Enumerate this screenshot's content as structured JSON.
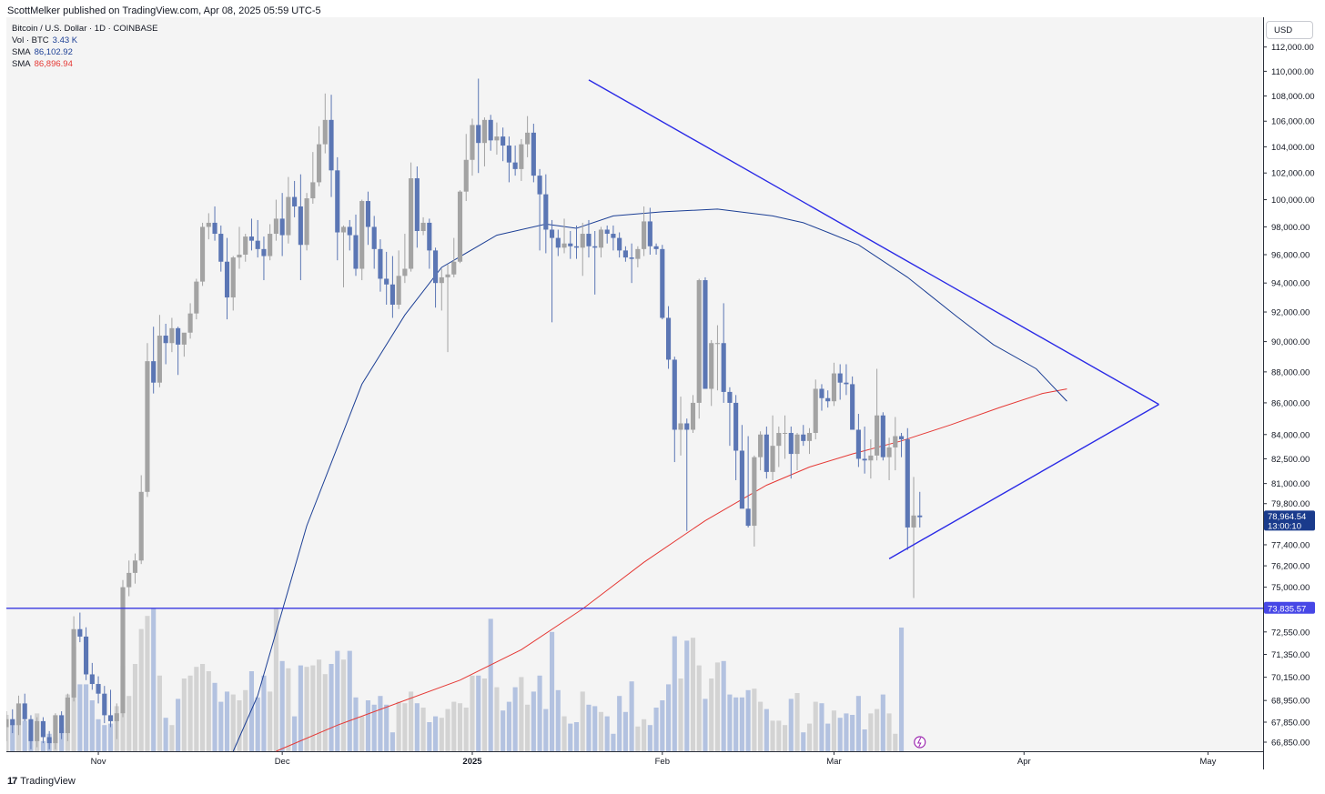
{
  "header": {
    "published_line": "ScottMelker published on TradingView.com, Apr 08, 2025 05:59 UTC-5"
  },
  "legend": {
    "symbol": "Bitcoin / U.S. Dollar · 1D · COINBASE",
    "vol_label": "Vol · BTC",
    "vol_value": "3.43 K",
    "sma1_label": "SMA",
    "sma1_value": "86,102.92",
    "sma2_label": "SMA",
    "sma2_value": "86,896.94"
  },
  "currency_button": "USD",
  "footer": {
    "brand": "TradingView",
    "logo_glyph": "17"
  },
  "colors": {
    "up": "#a3a3a3",
    "down": "#5b76b4",
    "vol_up": "#d3d3d3",
    "vol_down": "#b3c2e0",
    "sma_fast": "#1c3f95",
    "sma_slow": "#e53935",
    "trendline": "#2a2ae6",
    "support": "#3636e0",
    "price_label_bg": "#1a3b8c",
    "support_label_bg": "#4747e6"
  },
  "chart_data": {
    "type": "candlestick",
    "title": "Bitcoin / U.S. Dollar · 1D · COINBASE",
    "x_ticks": [
      "Nov",
      "Dec",
      "2025",
      "Feb",
      "Mar",
      "Apr",
      "May"
    ],
    "y_ticks": [
      "112,000.00",
      "110,000.00",
      "108,000.00",
      "106,000.00",
      "104,000.00",
      "102,000.00",
      "100,000.00",
      "98,000.00",
      "96,000.00",
      "94,000.00",
      "92,000.00",
      "90,000.00",
      "88,000.00",
      "86,000.00",
      "84,000.00",
      "82,500.00",
      "81,000.00",
      "79,800.00",
      "77,400.00",
      "76,200.00",
      "75,000.00",
      "72,550.00",
      "71,350.00",
      "70,150.00",
      "68,950.00",
      "67,850.00",
      "66,850.00"
    ],
    "y_tick_values": [
      112000,
      110000,
      108000,
      106000,
      104000,
      102000,
      100000,
      98000,
      96000,
      94000,
      92000,
      90000,
      88000,
      86000,
      84000,
      82500,
      81000,
      79800,
      77400,
      76200,
      75000,
      72550,
      71350,
      70150,
      68950,
      67850,
      66850
    ],
    "y_scale": "log",
    "ylim": [
      66400,
      114500
    ],
    "start_date": "2024-10-17",
    "end_date": "2025-04-08",
    "x_range_dates": [
      "2024-10-17",
      "2025-05-10"
    ],
    "candles_ohlc": [
      [
        67600,
        68400,
        66900,
        68000
      ],
      [
        68000,
        68500,
        67300,
        67700
      ],
      [
        67700,
        69200,
        67200,
        68800
      ],
      [
        68800,
        69300,
        67900,
        68000
      ],
      [
        68000,
        68200,
        66500,
        66900
      ],
      [
        66900,
        68100,
        66600,
        67900
      ],
      [
        67900,
        68100,
        66800,
        67100
      ],
      [
        67100,
        67400,
        66500,
        66800
      ],
      [
        66800,
        68300,
        66500,
        68200
      ],
      [
        68200,
        68400,
        67000,
        67300
      ],
      [
        67300,
        69300,
        66900,
        69100
      ],
      [
        69100,
        73400,
        68900,
        72700
      ],
      [
        72700,
        73600,
        72000,
        72300
      ],
      [
        72300,
        72800,
        70000,
        70300
      ],
      [
        70300,
        70900,
        69500,
        69800
      ],
      [
        69800,
        70200,
        68800,
        69300
      ],
      [
        69300,
        69700,
        67800,
        68200
      ],
      [
        68200,
        69500,
        67600,
        67900
      ],
      [
        67900,
        68800,
        67000,
        68300
      ],
      [
        68300,
        75400,
        68100,
        75000
      ],
      [
        75000,
        76500,
        74500,
        75800
      ],
      [
        75800,
        76900,
        75200,
        76500
      ],
      [
        76500,
        81500,
        76300,
        80500
      ],
      [
        80500,
        89900,
        80200,
        88700
      ],
      [
        88700,
        91000,
        86600,
        87300
      ],
      [
        87300,
        91800,
        87000,
        90400
      ],
      [
        90400,
        91200,
        88500,
        89900
      ],
      [
        89900,
        91600,
        89300,
        90900
      ],
      [
        90900,
        91000,
        87800,
        89800
      ],
      [
        89800,
        90500,
        89000,
        90600
      ],
      [
        90600,
        92600,
        90200,
        91900
      ],
      [
        91900,
        94300,
        91500,
        94100
      ],
      [
        94100,
        98300,
        93800,
        98000
      ],
      [
        98000,
        99000,
        97100,
        98300
      ],
      [
        98300,
        99500,
        97000,
        97500
      ],
      [
        97500,
        98100,
        94800,
        95500
      ],
      [
        95500,
        97200,
        91500,
        93000
      ],
      [
        93000,
        95900,
        92100,
        95800
      ],
      [
        95800,
        98000,
        95000,
        96000
      ],
      [
        96000,
        97500,
        95500,
        97300
      ],
      [
        97300,
        98600,
        96300,
        97000
      ],
      [
        97000,
        98500,
        95800,
        96400
      ],
      [
        96400,
        97300,
        94200,
        95900
      ],
      [
        95900,
        98200,
        95600,
        97500
      ],
      [
        97500,
        100000,
        97000,
        98600
      ],
      [
        98600,
        100500,
        95900,
        97400
      ],
      [
        97400,
        101700,
        96800,
        100200
      ],
      [
        100200,
        101400,
        98700,
        99500
      ],
      [
        99500,
        101900,
        94200,
        96700
      ],
      [
        96700,
        100500,
        96300,
        100100
      ],
      [
        100100,
        103600,
        99700,
        101300
      ],
      [
        101300,
        105600,
        101000,
        104200
      ],
      [
        104200,
        108200,
        103500,
        106100
      ],
      [
        106100,
        108100,
        100200,
        102200
      ],
      [
        102200,
        103200,
        95600,
        97600
      ],
      [
        97600,
        98100,
        93700,
        98000
      ],
      [
        98000,
        98500,
        96300,
        97400
      ],
      [
        97400,
        98900,
        94500,
        95000
      ],
      [
        95000,
        100000,
        94200,
        99900
      ],
      [
        99900,
        100600,
        96700,
        98000
      ],
      [
        98000,
        98800,
        95000,
        96400
      ],
      [
        96400,
        97100,
        93400,
        94300
      ],
      [
        94300,
        96200,
        92500,
        93900
      ],
      [
        93900,
        95900,
        91600,
        92500
      ],
      [
        92500,
        96300,
        92200,
        94500
      ],
      [
        94500,
        97500,
        94000,
        95000
      ],
      [
        95000,
        102800,
        94800,
        101600
      ],
      [
        101600,
        102500,
        96500,
        97700
      ],
      [
        97700,
        98700,
        97400,
        98300
      ],
      [
        98300,
        98600,
        95000,
        96300
      ],
      [
        96300,
        96500,
        92300,
        94000
      ],
      [
        94000,
        95000,
        92100,
        94400
      ],
      [
        94400,
        95300,
        89300,
        94600
      ],
      [
        94600,
        97200,
        94400,
        95500
      ],
      [
        95500,
        100700,
        95400,
        100600
      ],
      [
        100600,
        105000,
        99900,
        103000
      ],
      [
        103000,
        106200,
        101800,
        105700
      ],
      [
        105700,
        109400,
        102000,
        104300
      ],
      [
        104300,
        106300,
        102500,
        106100
      ],
      [
        106100,
        106500,
        103700,
        104500
      ],
      [
        104500,
        105900,
        103400,
        104800
      ],
      [
        104800,
        105500,
        102900,
        104100
      ],
      [
        104100,
        104800,
        101300,
        102800
      ],
      [
        102800,
        104100,
        101800,
        102300
      ],
      [
        102300,
        104600,
        101400,
        104200
      ],
      [
        104200,
        106400,
        103200,
        105100
      ],
      [
        105100,
        105800,
        101300,
        101800
      ],
      [
        101800,
        102300,
        96300,
        100400
      ],
      [
        100400,
        101900,
        96100,
        97800
      ],
      [
        97800,
        98500,
        91300,
        97200
      ],
      [
        97200,
        97800,
        95900,
        96500
      ],
      [
        96500,
        98600,
        96100,
        96800
      ],
      [
        96800,
        97700,
        95700,
        96600
      ],
      [
        96600,
        98100,
        95700,
        96500
      ],
      [
        96500,
        98300,
        94500,
        97500
      ],
      [
        97500,
        98500,
        95800,
        96600
      ],
      [
        96600,
        97700,
        93200,
        96500
      ],
      [
        96500,
        98000,
        95800,
        97800
      ],
      [
        97800,
        98100,
        96800,
        97500
      ],
      [
        97500,
        98100,
        96300,
        97200
      ],
      [
        97200,
        97600,
        95800,
        96300
      ],
      [
        96300,
        96600,
        95500,
        95800
      ],
      [
        95800,
        96800,
        94000,
        95700
      ],
      [
        95700,
        96600,
        95100,
        96400
      ],
      [
        96400,
        99500,
        95900,
        98400
      ],
      [
        98400,
        99400,
        96000,
        96600
      ],
      [
        96600,
        96800,
        96000,
        96400
      ],
      [
        96400,
        96700,
        91500,
        91600
      ],
      [
        91600,
        92400,
        88200,
        88800
      ],
      [
        88800,
        89000,
        82300,
        84300
      ],
      [
        84300,
        86400,
        82700,
        84700
      ],
      [
        84700,
        85000,
        78200,
        84300
      ],
      [
        84300,
        86500,
        84100,
        86000
      ],
      [
        86000,
        94300,
        85000,
        94200
      ],
      [
        94200,
        94400,
        87000,
        86900
      ],
      [
        86900,
        90100,
        85800,
        89900
      ],
      [
        89900,
        91100,
        86800,
        89900
      ],
      [
        89900,
        92600,
        86000,
        86700
      ],
      [
        86700,
        87000,
        83300,
        86000
      ],
      [
        86000,
        86500,
        81200,
        83000
      ],
      [
        83000,
        84600,
        79900,
        79500
      ],
      [
        79500,
        83900,
        78400,
        78500
      ],
      [
        78500,
        82700,
        77300,
        82600
      ],
      [
        82600,
        84200,
        81800,
        84000
      ],
      [
        84000,
        84500,
        81300,
        81700
      ],
      [
        81700,
        85200,
        81200,
        83300
      ],
      [
        83300,
        84500,
        82000,
        84100
      ],
      [
        84100,
        85200,
        82500,
        84100
      ],
      [
        84100,
        84500,
        81300,
        82800
      ],
      [
        82800,
        84100,
        81800,
        84000
      ],
      [
        84000,
        84600,
        83300,
        83600
      ],
      [
        83600,
        84400,
        82800,
        84100
      ],
      [
        84100,
        87500,
        83700,
        86900
      ],
      [
        86900,
        87200,
        85500,
        86300
      ],
      [
        86300,
        86800,
        85700,
        86100
      ],
      [
        86100,
        88600,
        85800,
        87900
      ],
      [
        87900,
        88500,
        86200,
        87300
      ],
      [
        87300,
        88500,
        86500,
        87200
      ],
      [
        87200,
        87700,
        84500,
        84300
      ],
      [
        84300,
        85300,
        82000,
        82500
      ],
      [
        82500,
        84500,
        81600,
        82400
      ],
      [
        82400,
        83700,
        81300,
        82700
      ],
      [
        82700,
        88200,
        82400,
        85200
      ],
      [
        85200,
        85400,
        82400,
        82600
      ],
      [
        82600,
        83800,
        81200,
        83200
      ],
      [
        83200,
        85100,
        81800,
        83900
      ],
      [
        83900,
        84100,
        82600,
        83700
      ],
      [
        83700,
        84400,
        77100,
        78400
      ],
      [
        78400,
        81400,
        74400,
        79100
      ],
      [
        79100,
        80500,
        78400,
        79000
      ]
    ],
    "volume_relative": [
      0.25,
      0.19,
      0.26,
      0.21,
      0.14,
      0.26,
      0.07,
      0.12,
      0.09,
      0.16,
      0.39,
      0.72,
      0.46,
      0.46,
      0.35,
      0.22,
      0.18,
      0.19,
      0.31,
      0.59,
      0.38,
      0.6,
      0.84,
      0.93,
      0.98,
      0.52,
      0.23,
      0.18,
      0.36,
      0.5,
      0.52,
      0.58,
      0.6,
      0.55,
      0.47,
      0.34,
      0.41,
      0.39,
      0.35,
      0.42,
      0.55,
      0.37,
      0.52,
      0.41,
      0.98,
      0.62,
      0.57,
      0.24,
      0.59,
      0.58,
      0.59,
      0.63,
      0.53,
      0.6,
      0.69,
      0.63,
      0.69,
      0.37,
      0.24,
      0.35,
      0.32,
      0.38,
      0.32,
      0.13,
      0.34,
      0.33,
      0.41,
      0.33,
      0.3,
      0.2,
      0.24,
      0.23,
      0.29,
      0.34,
      0.33,
      0.3,
      0.52,
      0.52,
      0.5,
      0.91,
      0.44,
      0.28,
      0.34,
      0.44,
      0.51,
      0.32,
      0.41,
      0.52,
      0.29,
      0.82,
      0.42,
      0.24,
      0.19,
      0.2,
      0.41,
      0.32,
      0.31,
      0.27,
      0.24,
      0.12,
      0.38,
      0.27,
      0.48,
      0.17,
      0.22,
      0.18,
      0.3,
      0.35,
      0.46,
      0.79,
      0.5,
      0.76,
      0.78,
      0.59,
      0.36,
      0.5,
      0.61,
      0.62,
      0.39,
      0.37,
      0.37,
      0.42,
      0.43,
      0.34,
      0.29,
      0.21,
      0.21,
      0.18,
      0.36,
      0.4,
      0.13,
      0.19,
      0.34,
      0.33,
      0.19,
      0.28,
      0.23,
      0.26,
      0.25,
      0.38,
      0.15,
      0.26,
      0.29,
      0.39,
      0.26,
      0.12,
      0.85
    ],
    "sma_fast_points": [
      [
        "2024-11-23",
        66400
      ],
      [
        "2024-11-27",
        69200
      ],
      [
        "2024-12-05",
        78500
      ],
      [
        "2024-12-14",
        87200
      ],
      [
        "2024-12-21",
        91800
      ],
      [
        "2024-12-27",
        95100
      ],
      [
        "2025-01-05",
        97400
      ],
      [
        "2025-01-13",
        98200
      ],
      [
        "2025-01-18",
        97900
      ],
      [
        "2025-01-24",
        98800
      ],
      [
        "2025-02-01",
        99100
      ],
      [
        "2025-02-10",
        99300
      ],
      [
        "2025-02-19",
        98800
      ],
      [
        "2025-02-24",
        98300
      ],
      [
        "2025-02-28",
        97600
      ],
      [
        "2025-03-05",
        96700
      ],
      [
        "2025-03-13",
        94400
      ],
      [
        "2025-03-21",
        91700
      ],
      [
        "2025-03-27",
        89800
      ],
      [
        "2025-04-03",
        88200
      ],
      [
        "2025-04-08",
        86103
      ]
    ],
    "sma_slow_points": [
      [
        "2024-11-30",
        66400
      ],
      [
        "2024-12-10",
        67700
      ],
      [
        "2024-12-30",
        70000
      ],
      [
        "2025-01-09",
        71600
      ],
      [
        "2025-01-19",
        73800
      ],
      [
        "2025-01-29",
        76400
      ],
      [
        "2025-02-08",
        78800
      ],
      [
        "2025-02-18",
        80900
      ],
      [
        "2025-02-25",
        82000
      ],
      [
        "2025-03-04",
        82800
      ],
      [
        "2025-03-12",
        83600
      ],
      [
        "2025-03-20",
        84600
      ],
      [
        "2025-03-28",
        85700
      ],
      [
        "2025-04-04",
        86600
      ],
      [
        "2025-04-08",
        86897
      ]
    ],
    "descending_trendline": [
      [
        "2025-01-20",
        109300
      ],
      [
        "2025-04-23",
        85900
      ]
    ],
    "ascending_trendline": [
      [
        "2025-03-10",
        76600
      ],
      [
        "2025-04-23",
        85900
      ]
    ],
    "horizontal_support": 73835.57,
    "last_price_label": "78,964.54",
    "countdown_label": "13:00:10",
    "support_label": "73,835.57",
    "last_price": 78964.54,
    "legend_entries": [
      "Vol · BTC",
      "SMA",
      "SMA"
    ],
    "grid": false
  }
}
